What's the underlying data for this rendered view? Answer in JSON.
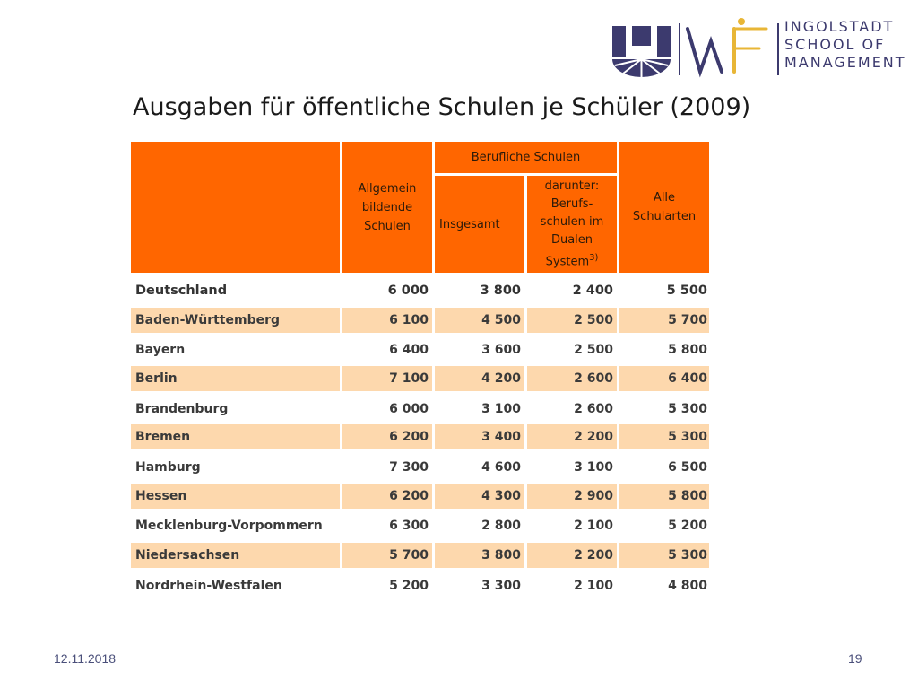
{
  "logo": {
    "lines": [
      "INGOLSTADT",
      "SCHOOL OF",
      "MANAGEMENT"
    ],
    "colors": {
      "navy": "#3c3a6e",
      "gold": "#e8b636"
    }
  },
  "slide": {
    "title": "Ausgaben für öffentliche Schulen je Schüler (2009)",
    "date": "12.11.2018",
    "page": "19"
  },
  "table": {
    "colors": {
      "header": "#ff6600",
      "shaded_row": "#fdd8ad"
    },
    "header": {
      "group": "Berufliche Schulen",
      "col1": "Allgemein\nbildende\nSchulen",
      "col2": "Insgesamt",
      "col3": "darunter:\nBerufs-\nschulen im\nDualen\nSystem",
      "col3_footnote": "3)",
      "col4": "Alle\nSchularten"
    },
    "rows": [
      {
        "land": "Deutschland",
        "values": [
          "6 000",
          "3 800",
          "2 400",
          "5 500"
        ]
      },
      {
        "land": "Baden-Württemberg",
        "values": [
          "6 100",
          "4 500",
          "2 500",
          "5 700"
        ]
      },
      {
        "land": "Bayern",
        "values": [
          "6 400",
          "3 600",
          "2 500",
          "5 800"
        ]
      },
      {
        "land": "Berlin",
        "values": [
          "7 100",
          "4 200",
          "2 600",
          "6 400"
        ]
      },
      {
        "land": "Brandenburg",
        "values": [
          "6 000",
          "3 100",
          "2 600",
          "5 300"
        ]
      },
      {
        "land": "Bremen",
        "values": [
          "6 200",
          "3 400",
          "2 200",
          "5 300"
        ]
      },
      {
        "land": "Hamburg",
        "values": [
          "7 300",
          "4 600",
          "3 100",
          "6 500"
        ]
      },
      {
        "land": "Hessen",
        "values": [
          "6 200",
          "4 300",
          "2 900",
          "5 800"
        ]
      },
      {
        "land": "Mecklenburg-Vorpommern",
        "values": [
          "6 300",
          "2 800",
          "2 100",
          "5 200"
        ]
      },
      {
        "land": "Niedersachsen",
        "values": [
          "5 700",
          "3 800",
          "2 200",
          "5 300"
        ]
      },
      {
        "land": "Nordrhein-Westfalen",
        "values": [
          "5 200",
          "3 300",
          "2 100",
          "4 800"
        ]
      }
    ]
  }
}
